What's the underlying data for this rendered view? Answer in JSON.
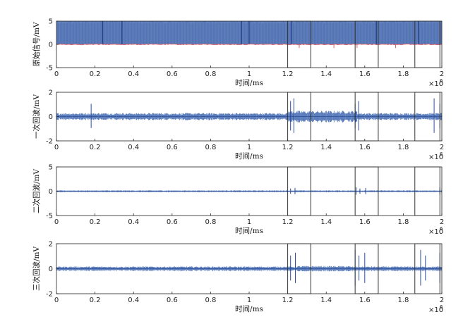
{
  "colors": {
    "signal": "#4a6fb5",
    "baseline": "#e0606a",
    "box": "#333333",
    "axis": "#222222"
  },
  "x_multiplier": {
    "base": "×10",
    "exp": "6"
  },
  "chart_data": [
    {
      "type": "line",
      "ylabel": "原始信号/mV",
      "xlabel": "时间/ms",
      "xlim": [
        0,
        2000000
      ],
      "ylim": [
        -5,
        5
      ],
      "x_ticks": [
        "0",
        "0.2",
        "0.4",
        "0.6",
        "0.8",
        "1",
        "1.2",
        "1.4",
        "1.6",
        "1.8",
        "2"
      ],
      "y_ticks": [
        "5",
        "0",
        "-5"
      ],
      "series": [
        {
          "description": "dense signal filling 0 to 5 mV",
          "noise_amplitude": 5,
          "offset": 0
        },
        {
          "description": "baseline near 0 mV",
          "noise_amplitude": 0.3,
          "offset": 0
        }
      ],
      "highlight_ranges_x": [
        [
          1200000,
          1320000
        ],
        [
          1550000,
          1670000
        ],
        [
          1860000,
          1990000
        ]
      ]
    },
    {
      "type": "line",
      "ylabel": "一次回波/mV",
      "xlabel": "时间/ms",
      "xlim": [
        0,
        2000000
      ],
      "ylim": [
        -2,
        2
      ],
      "x_ticks": [
        "0",
        "0.2",
        "0.4",
        "0.6",
        "0.8",
        "1",
        "1.2",
        "1.4",
        "1.6",
        "1.8",
        "2"
      ],
      "y_ticks": [
        "2",
        "0",
        "-2"
      ],
      "series": [
        {
          "noise_amplitude": 0.25,
          "offset": 0
        }
      ],
      "spikes_x": [
        180000,
        1215000,
        1232000,
        1550000,
        1568000,
        1960000,
        1990000
      ],
      "highlight_ranges_x": [
        [
          1200000,
          1320000
        ],
        [
          1550000,
          1670000
        ],
        [
          1860000,
          1990000
        ]
      ]
    },
    {
      "type": "line",
      "ylabel": "二次回波/mV",
      "xlabel": "时间/ms",
      "xlim": [
        0,
        2000000
      ],
      "ylim": [
        -5,
        5
      ],
      "x_ticks": [
        "0",
        "0.2",
        "0.4",
        "0.6",
        "0.8",
        "1",
        "1.2",
        "1.4",
        "1.6",
        "1.8",
        "2"
      ],
      "y_ticks": [
        "5",
        "0",
        "-5"
      ],
      "series": [
        {
          "noise_amplitude": 0.15,
          "offset": 0
        }
      ],
      "spikes_x": [
        1215000,
        1238000,
        1555000,
        1575000,
        1605000,
        1990000
      ],
      "highlight_ranges_x": [
        [
          1200000,
          1320000
        ],
        [
          1550000,
          1670000
        ],
        [
          1860000,
          1990000
        ]
      ]
    },
    {
      "type": "line",
      "ylabel": "三次回波/mV",
      "xlabel": "时间/ms",
      "xlim": [
        0,
        2000000
      ],
      "ylim": [
        -2,
        2
      ],
      "x_ticks": [
        "0",
        "0.2",
        "0.4",
        "0.6",
        "0.8",
        "1",
        "1.2",
        "1.4",
        "1.6",
        "1.8",
        "2"
      ],
      "y_ticks": [
        "2",
        "0",
        "-2"
      ],
      "series": [
        {
          "noise_amplitude": 0.15,
          "offset": 0
        }
      ],
      "spikes_x": [
        1215000,
        1240000,
        1550000,
        1570000,
        1600000,
        1890000,
        1915000,
        1990000
      ],
      "highlight_ranges_x": [
        [
          1200000,
          1320000
        ],
        [
          1550000,
          1670000
        ],
        [
          1860000,
          1990000
        ]
      ]
    }
  ]
}
